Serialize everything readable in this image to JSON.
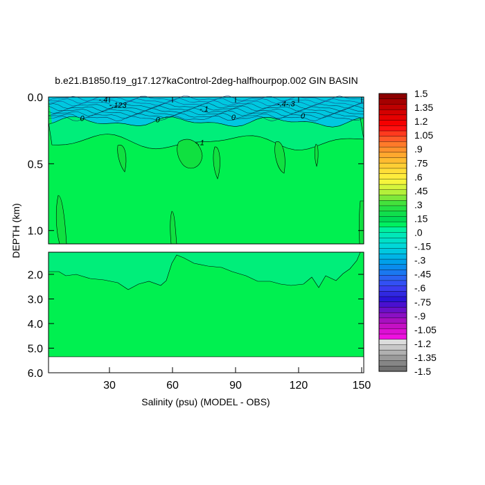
{
  "chart_data": {
    "type": "contour",
    "title": "b.e21.B1850.f19_g17.127kaControl-2deg-halfhourpop.002 GIN BASIN",
    "xlabel": "Salinity (psu) (MODEL - OBS)",
    "ylabel": "DEPTH (km)",
    "xlim": [
      1,
      151
    ],
    "x_ticks": [
      30,
      60,
      90,
      120,
      150
    ],
    "x_tick_labels": [
      "30",
      "60",
      "90",
      "120",
      "150"
    ],
    "upper_panel": {
      "ylim": [
        0.0,
        1.1
      ],
      "y_ticks": [
        0.0,
        0.5,
        1.0
      ],
      "y_tick_labels": [
        "0.0",
        "0.5",
        "1.0"
      ]
    },
    "lower_panel": {
      "ylim": [
        1.1,
        6.0
      ],
      "y_ticks": [
        2.0,
        3.0,
        4.0,
        5.0,
        6.0
      ],
      "y_tick_labels": [
        "2.0",
        "3.0",
        "4.0",
        "5.0",
        "6.0"
      ],
      "missing_below_depth": 5.35
    },
    "contour_labels": [
      {
        "x": 27,
        "y": 0.04,
        "text": "-.4"
      },
      {
        "x": 34,
        "y": 0.08,
        "text": "-.123"
      },
      {
        "x": 17,
        "y": 0.18,
        "text": "0"
      },
      {
        "x": 53,
        "y": 0.19,
        "text": "0"
      },
      {
        "x": 75,
        "y": 0.11,
        "text": "-.1"
      },
      {
        "x": 89,
        "y": 0.17,
        "text": "0"
      },
      {
        "x": 114,
        "y": 0.07,
        "text": "-.4-.3"
      },
      {
        "x": 122,
        "y": 0.16,
        "text": "0"
      },
      {
        "x": 73,
        "y": 0.36,
        "text": "-.1"
      }
    ],
    "colorbar": {
      "labels": [
        "1.5",
        "1.35",
        "1.2",
        "1.05",
        ".9",
        ".75",
        ".6",
        ".45",
        ".3",
        ".15",
        ".0",
        "-.15",
        "-.3",
        "-.45",
        "-.6",
        "-.75",
        "-.9",
        "-1.05",
        "-1.2",
        "-1.35",
        "-1.5"
      ],
      "colors_top_to_bottom": [
        "#8c0000",
        "#a50000",
        "#be0000",
        "#d40000",
        "#e60000",
        "#f50000",
        "#ff1010",
        "#ff3a1e",
        "#ff5a28",
        "#ff7a2a",
        "#ff922c",
        "#ffa82e",
        "#ffbb30",
        "#ffce34",
        "#ffde38",
        "#ffec3c",
        "#f5f53c",
        "#d6f53c",
        "#b4f03a",
        "#7ee83a",
        "#44e23c",
        "#25e043",
        "#10de4c",
        "#00db56",
        "#00f060",
        "#00f0a0",
        "#00e8b8",
        "#00e0c8",
        "#00d8d8",
        "#00c8e0",
        "#00b4e6",
        "#00a0ea",
        "#0a8ced",
        "#1a78f0",
        "#2a64f2",
        "#3250f4",
        "#3a3cf0",
        "#3028e0",
        "#2a14d8",
        "#4a10d0",
        "#6a10c8",
        "#8a10c4",
        "#a810c0",
        "#c410c4",
        "#dc10d4",
        "#ee10e0",
        "#dcdcdc",
        "#c8c8c8",
        "#b0b0b0",
        "#9a9a9a",
        "#868686",
        "#727272"
      ]
    },
    "fill_colors": {
      "near_zero_positive": "#00f050",
      "slightly_positive": "#10e040",
      "near_zero_negative": "#00ee7a",
      "surface_negative": "#00c8e0",
      "missing": "#ffffff"
    }
  }
}
